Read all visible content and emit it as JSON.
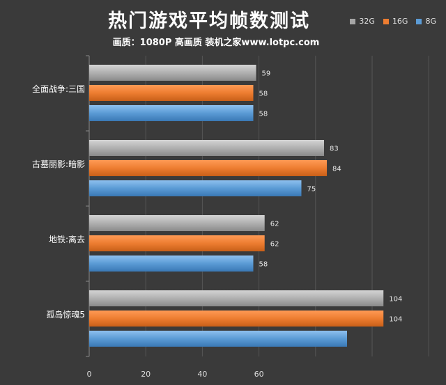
{
  "chart_data": {
    "type": "bar",
    "orientation": "horizontal",
    "title": "热门游戏平均帧数测试",
    "subtitle": "画质：1080P 高画质 装机之家www.lotpc.com",
    "categories": [
      "全面战争:三国",
      "古墓丽影:暗影",
      "地铁:离去",
      "孤岛惊魂5"
    ],
    "series": [
      {
        "name": "32G",
        "color": "#a6a6a6",
        "values": [
          59,
          83,
          62,
          104
        ]
      },
      {
        "name": "16G",
        "color": "#ed7d31",
        "values": [
          58,
          84,
          62,
          104
        ]
      },
      {
        "name": "8G",
        "color": "#5b9bd5",
        "values": [
          58,
          75,
          58,
          null
        ]
      }
    ],
    "x_ticks": [
      "0",
      "20",
      "40",
      "60"
    ],
    "xlim": [
      0,
      120
    ],
    "legend_position": "top-right",
    "grid": true
  }
}
